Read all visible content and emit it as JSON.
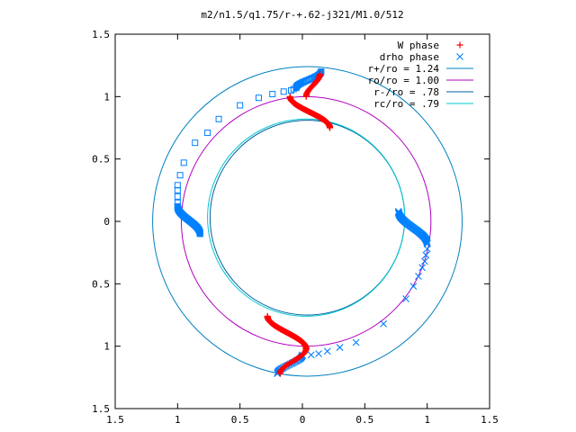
{
  "chart_data": {
    "type": "scatter",
    "title": "m2/n1.5/q1.75/r-+.62-j321/M1.0/512",
    "xlim": [
      -1.5,
      1.5
    ],
    "ylim": [
      -1.5,
      1.5
    ],
    "x_ticks": [
      -1.5,
      -1,
      -0.5,
      0,
      0.5,
      1,
      1.5
    ],
    "x_tick_labels": [
      "1.5",
      "1",
      "0.5",
      "0",
      "0.5",
      "1",
      "1.5"
    ],
    "y_ticks": [
      1.5,
      1,
      0.5,
      0,
      -0.5,
      -1,
      -1.5
    ],
    "y_tick_labels": [
      "1.5",
      "1",
      "0.5",
      "0",
      "0.5",
      "1",
      "1.5"
    ],
    "grid": false,
    "legend_position": "top-right",
    "legend": [
      {
        "label": "W phase",
        "marker": "+",
        "color": "#ff0000"
      },
      {
        "label": "drho phase",
        "marker": "x",
        "color": "#0080ff"
      },
      {
        "label": "r+/ro = 1.24",
        "marker": "line",
        "color": "#0080c0"
      },
      {
        "label": "ro/ro = 1.00",
        "marker": "line",
        "color": "#b000c0"
      },
      {
        "label": "r-/ro = .78",
        "marker": "line",
        "color": "#0060a0"
      },
      {
        "label": "rc/ro = .79",
        "marker": "line",
        "color": "#00c8d0"
      }
    ],
    "circles": [
      {
        "name": "r+/ro = 1.24",
        "cx": 0.04,
        "cy": 0.0,
        "r": 1.24,
        "color": "#0080c0"
      },
      {
        "name": "ro/ro = 1.00",
        "cx": 0.03,
        "cy": 0.0,
        "r": 1.0,
        "color": "#b000c0"
      },
      {
        "name": "r-/ro = .78",
        "cx": 0.04,
        "cy": 0.03,
        "r": 0.78,
        "color": "#0060a0"
      },
      {
        "name": "rc/ro = .79",
        "cx": 0.03,
        "cy": 0.03,
        "r": 0.79,
        "color": "#00c8d0"
      }
    ],
    "w_phase": {
      "marker": "+",
      "color": "#ff0000",
      "curves": [
        {
          "x0": 0.22,
          "y0": 0.75,
          "x1": -0.1,
          "y1": 1.0,
          "shape": "s",
          "n": 90
        },
        {
          "x0": -0.28,
          "y0": -0.76,
          "x1": 0.03,
          "y1": -1.02,
          "shape": "s",
          "n": 90
        },
        {
          "x0": 0.03,
          "y0": 1.0,
          "x1": 0.14,
          "y1": 1.18,
          "shape": "s",
          "n": 25
        },
        {
          "x0": 0.03,
          "y0": -1.02,
          "x1": -0.18,
          "y1": -1.22,
          "shape": "s",
          "n": 25
        }
      ]
    },
    "drho_phase": {
      "marker": "x",
      "color": "#0080ff",
      "curves": [
        {
          "x0": 0.77,
          "y0": 0.08,
          "x1": 1.0,
          "y1": -0.18,
          "shape": "s",
          "n": 60
        },
        {
          "x0": 0.0,
          "y0": -1.07,
          "x1": -0.2,
          "y1": -1.22,
          "shape": "s",
          "n": 30
        }
      ],
      "points": [
        [
          1.0,
          -0.22
        ],
        [
          0.99,
          -0.27
        ],
        [
          0.98,
          -0.32
        ],
        [
          0.96,
          -0.37
        ],
        [
          0.93,
          -0.44
        ],
        [
          0.89,
          -0.52
        ],
        [
          0.83,
          -0.62
        ],
        [
          0.65,
          -0.82
        ],
        [
          0.43,
          -0.97
        ],
        [
          0.3,
          -1.01
        ],
        [
          0.2,
          -1.04
        ],
        [
          0.13,
          -1.06
        ],
        [
          0.07,
          -1.07
        ]
      ]
    },
    "drho_square": {
      "marker": "square",
      "color": "#0080ff",
      "curves": [
        {
          "x0": -0.82,
          "y0": -0.1,
          "x1": -1.0,
          "y1": 0.12,
          "shape": "s",
          "n": 55
        },
        {
          "x0": -0.05,
          "y0": 1.07,
          "x1": 0.15,
          "y1": 1.2,
          "shape": "s",
          "n": 30
        }
      ],
      "points": [
        [
          -1.0,
          0.15
        ],
        [
          -1.0,
          0.2
        ],
        [
          -1.0,
          0.25
        ],
        [
          -1.0,
          0.29
        ],
        [
          -0.98,
          0.37
        ],
        [
          -0.95,
          0.47
        ],
        [
          -0.86,
          0.63
        ],
        [
          -0.76,
          0.71
        ],
        [
          -0.67,
          0.82
        ],
        [
          -0.5,
          0.93
        ],
        [
          -0.35,
          0.99
        ],
        [
          -0.24,
          1.02
        ],
        [
          -0.15,
          1.04
        ],
        [
          -0.09,
          1.05
        ],
        [
          -0.07,
          1.06
        ]
      ]
    }
  }
}
